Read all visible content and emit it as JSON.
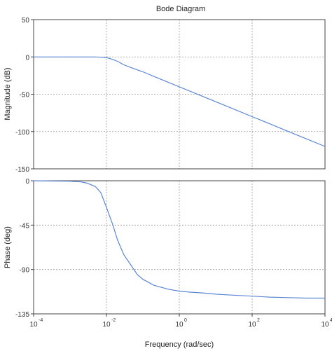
{
  "chart_data": {
    "type": "line",
    "title": "Bode Diagram",
    "xlabel": "Frequency  (rad/sec)",
    "xscale": "log",
    "xlim_exponents": [
      -4,
      4
    ],
    "x_ticks": [
      {
        "base": "10",
        "exp": "-4"
      },
      {
        "base": "10",
        "exp": "-2"
      },
      {
        "base": "10",
        "exp": "0"
      },
      {
        "base": "10",
        "exp": "2"
      },
      {
        "base": "10",
        "exp": "4"
      }
    ],
    "grid": true,
    "line_color": "#5b86d6",
    "panels": [
      {
        "id": "magnitude",
        "ylabel": "Magnitude (dB)",
        "ylim": [
          -150,
          50
        ],
        "y_ticks": [
          "50",
          "0",
          "-50",
          "-100",
          "-150"
        ],
        "series": [
          {
            "x": [
              0.0001,
              0.001,
              0.003,
              0.005,
              0.008,
              0.01,
              0.012,
              0.015,
              0.02,
              0.03,
              0.05,
              0.1,
              0.3,
              1,
              3,
              10,
              30,
              100,
              300,
              1000,
              3000,
              10000
            ],
            "y": [
              0,
              0,
              0,
              0,
              -0.5,
              -1,
              -1.9,
              -3.4,
              -5.9,
              -10.6,
              -14.7,
              -20,
              -29.6,
              -40,
              -49.6,
              -60,
              -69.5,
              -80,
              -89.5,
              -100,
              -109.5,
              -120
            ]
          }
        ]
      },
      {
        "id": "phase",
        "ylabel": "Phase (deg)",
        "ylim": [
          -135,
          0
        ],
        "y_ticks": [
          "0",
          "-45",
          "-90",
          "-135"
        ],
        "series": [
          {
            "x": [
              0.0001,
              0.001,
              0.002,
              0.003,
              0.005,
              0.007,
              0.01,
              0.015,
              0.02,
              0.03,
              0.05,
              0.07,
              0.1,
              0.2,
              0.5,
              1,
              2,
              5,
              10,
              30,
              100,
              300,
              1000,
              3000,
              10000
            ],
            "y": [
              0,
              -0.5,
              -1.2,
              -2.5,
              -6,
              -12,
              -27,
              -45,
              -60,
              -75,
              -87,
              -95,
              -100,
              -106,
              -110,
              -112,
              -113,
              -114,
              -115,
              -116,
              -117,
              -118,
              -118.5,
              -119,
              -119
            ]
          }
        ]
      }
    ]
  }
}
